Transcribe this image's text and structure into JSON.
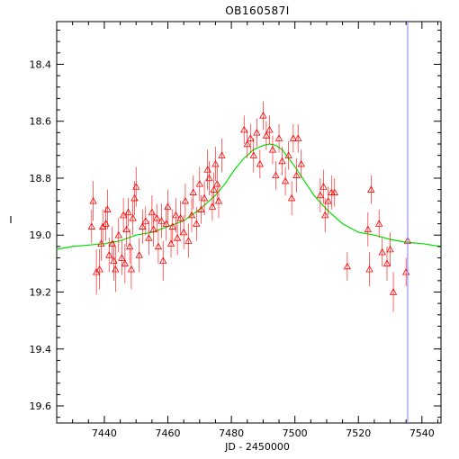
{
  "chart_data": {
    "type": "scatter",
    "title": "OB160587I",
    "xlabel": "JD - 2450000",
    "ylabel": "I",
    "xlim": [
      7425,
      7546
    ],
    "ylim": [
      19.66,
      18.25
    ],
    "y_inverted": true,
    "xticks": [
      7440,
      7460,
      7480,
      7500,
      7520,
      7540
    ],
    "yticks": [
      18.4,
      18.6,
      18.8,
      19.0,
      19.2,
      19.4,
      19.6
    ],
    "colors": {
      "points": "#ff0000",
      "model": "#00e000",
      "vline": "#8080ff",
      "axes": "#000000"
    },
    "vertical_line_x": 7535.5,
    "model_curve": {
      "x": [
        7425,
        7430,
        7435,
        7440,
        7445,
        7450,
        7455,
        7460,
        7465,
        7470,
        7475,
        7478,
        7481,
        7484,
        7487,
        7490,
        7492,
        7494,
        7496,
        7498,
        7500,
        7503,
        7506,
        7510,
        7515,
        7520,
        7525,
        7530,
        7535,
        7540,
        7546
      ],
      "y": [
        19.05,
        19.04,
        19.035,
        19.03,
        19.02,
        19.0,
        18.99,
        18.97,
        18.95,
        18.91,
        18.86,
        18.82,
        18.77,
        18.73,
        18.7,
        18.685,
        18.68,
        18.685,
        18.7,
        18.73,
        18.76,
        18.81,
        18.86,
        18.91,
        18.96,
        18.99,
        19.0,
        19.015,
        19.025,
        19.03,
        19.04
      ]
    },
    "series": [
      {
        "marker": "triangle",
        "points": [
          {
            "x": 7436.0,
            "y": 18.97,
            "err": 0.06
          },
          {
            "x": 7436.5,
            "y": 18.88,
            "err": 0.07
          },
          {
            "x": 7437.5,
            "y": 19.13,
            "err": 0.08
          },
          {
            "x": 7438.5,
            "y": 19.12,
            "err": 0.07
          },
          {
            "x": 7439.0,
            "y": 19.03,
            "err": 0.06
          },
          {
            "x": 7439.5,
            "y": 18.97,
            "err": 0.06
          },
          {
            "x": 7440.5,
            "y": 18.96,
            "err": 0.06
          },
          {
            "x": 7441.0,
            "y": 18.91,
            "err": 0.07
          },
          {
            "x": 7441.5,
            "y": 19.07,
            "err": 0.06
          },
          {
            "x": 7442.5,
            "y": 19.03,
            "err": 0.06
          },
          {
            "x": 7443.0,
            "y": 19.09,
            "err": 0.07
          },
          {
            "x": 7443.5,
            "y": 19.12,
            "err": 0.08
          },
          {
            "x": 7444.5,
            "y": 19.0,
            "err": 0.06
          },
          {
            "x": 7445.5,
            "y": 19.08,
            "err": 0.06
          },
          {
            "x": 7446.0,
            "y": 18.93,
            "err": 0.06
          },
          {
            "x": 7446.5,
            "y": 19.1,
            "err": 0.07
          },
          {
            "x": 7447.0,
            "y": 18.98,
            "err": 0.06
          },
          {
            "x": 7447.5,
            "y": 18.92,
            "err": 0.05
          },
          {
            "x": 7448.0,
            "y": 19.04,
            "err": 0.06
          },
          {
            "x": 7448.5,
            "y": 19.12,
            "err": 0.07
          },
          {
            "x": 7449.0,
            "y": 18.94,
            "err": 0.06
          },
          {
            "x": 7449.5,
            "y": 18.87,
            "err": 0.06
          },
          {
            "x": 7450.0,
            "y": 18.83,
            "err": 0.07
          },
          {
            "x": 7451.0,
            "y": 19.07,
            "err": 0.06
          },
          {
            "x": 7452.0,
            "y": 18.97,
            "err": 0.06
          },
          {
            "x": 7453.0,
            "y": 18.95,
            "err": 0.05
          },
          {
            "x": 7454.0,
            "y": 19.01,
            "err": 0.06
          },
          {
            "x": 7455.0,
            "y": 18.92,
            "err": 0.06
          },
          {
            "x": 7455.5,
            "y": 18.98,
            "err": 0.06
          },
          {
            "x": 7456.5,
            "y": 18.94,
            "err": 0.05
          },
          {
            "x": 7457.0,
            "y": 19.04,
            "err": 0.06
          },
          {
            "x": 7458.0,
            "y": 18.95,
            "err": 0.06
          },
          {
            "x": 7458.5,
            "y": 19.09,
            "err": 0.07
          },
          {
            "x": 7459.5,
            "y": 18.96,
            "err": 0.06
          },
          {
            "x": 7460.0,
            "y": 18.9,
            "err": 0.06
          },
          {
            "x": 7461.0,
            "y": 19.03,
            "err": 0.05
          },
          {
            "x": 7461.5,
            "y": 18.97,
            "err": 0.06
          },
          {
            "x": 7462.5,
            "y": 18.93,
            "err": 0.06
          },
          {
            "x": 7463.0,
            "y": 19.01,
            "err": 0.06
          },
          {
            "x": 7464.0,
            "y": 18.94,
            "err": 0.06
          },
          {
            "x": 7465.0,
            "y": 18.99,
            "err": 0.06
          },
          {
            "x": 7465.5,
            "y": 18.88,
            "err": 0.06
          },
          {
            "x": 7466.5,
            "y": 19.02,
            "err": 0.06
          },
          {
            "x": 7467.5,
            "y": 18.93,
            "err": 0.06
          },
          {
            "x": 7468.0,
            "y": 18.85,
            "err": 0.06
          },
          {
            "x": 7469.0,
            "y": 18.96,
            "err": 0.06
          },
          {
            "x": 7470.0,
            "y": 18.82,
            "err": 0.06
          },
          {
            "x": 7470.5,
            "y": 18.91,
            "err": 0.05
          },
          {
            "x": 7471.5,
            "y": 18.87,
            "err": 0.06
          },
          {
            "x": 7472.5,
            "y": 18.77,
            "err": 0.07
          },
          {
            "x": 7473.0,
            "y": 18.8,
            "err": 0.06
          },
          {
            "x": 7474.0,
            "y": 18.9,
            "err": 0.05
          },
          {
            "x": 7474.5,
            "y": 18.84,
            "err": 0.06
          },
          {
            "x": 7475.0,
            "y": 18.75,
            "err": 0.06
          },
          {
            "x": 7475.5,
            "y": 18.82,
            "err": 0.06
          },
          {
            "x": 7476.0,
            "y": 18.88,
            "err": 0.06
          },
          {
            "x": 7477.0,
            "y": 18.72,
            "err": 0.06
          },
          {
            "x": 7484.0,
            "y": 18.63,
            "err": 0.05
          },
          {
            "x": 7485.0,
            "y": 18.68,
            "err": 0.05
          },
          {
            "x": 7486.0,
            "y": 18.66,
            "err": 0.05
          },
          {
            "x": 7487.0,
            "y": 18.72,
            "err": 0.06
          },
          {
            "x": 7488.0,
            "y": 18.64,
            "err": 0.05
          },
          {
            "x": 7489.0,
            "y": 18.75,
            "err": 0.05
          },
          {
            "x": 7490.0,
            "y": 18.58,
            "err": 0.05
          },
          {
            "x": 7491.0,
            "y": 18.65,
            "err": 0.05
          },
          {
            "x": 7492.0,
            "y": 18.63,
            "err": 0.05
          },
          {
            "x": 7493.0,
            "y": 18.7,
            "err": 0.05
          },
          {
            "x": 7494.0,
            "y": 18.79,
            "err": 0.05
          },
          {
            "x": 7495.0,
            "y": 18.66,
            "err": 0.05
          },
          {
            "x": 7496.0,
            "y": 18.74,
            "err": 0.05
          },
          {
            "x": 7497.0,
            "y": 18.81,
            "err": 0.05
          },
          {
            "x": 7498.0,
            "y": 18.72,
            "err": 0.05
          },
          {
            "x": 7499.0,
            "y": 18.87,
            "err": 0.06
          },
          {
            "x": 7499.5,
            "y": 18.66,
            "err": 0.05
          },
          {
            "x": 7500.5,
            "y": 18.79,
            "err": 0.06
          },
          {
            "x": 7501.0,
            "y": 18.66,
            "err": 0.05
          },
          {
            "x": 7502.0,
            "y": 18.75,
            "err": 0.05
          },
          {
            "x": 7508.0,
            "y": 18.86,
            "err": 0.06
          },
          {
            "x": 7509.0,
            "y": 18.83,
            "err": 0.06
          },
          {
            "x": 7509.5,
            "y": 18.93,
            "err": 0.06
          },
          {
            "x": 7510.5,
            "y": 18.88,
            "err": 0.05
          },
          {
            "x": 7511.5,
            "y": 18.85,
            "err": 0.06
          },
          {
            "x": 7512.5,
            "y": 18.85,
            "err": 0.05
          },
          {
            "x": 7516.5,
            "y": 19.11,
            "err": 0.05
          },
          {
            "x": 7523.0,
            "y": 18.98,
            "err": 0.06
          },
          {
            "x": 7523.5,
            "y": 19.12,
            "err": 0.06
          },
          {
            "x": 7524.0,
            "y": 18.84,
            "err": 0.05
          },
          {
            "x": 7526.5,
            "y": 18.96,
            "err": 0.05
          },
          {
            "x": 7527.5,
            "y": 19.06,
            "err": 0.05
          },
          {
            "x": 7529.0,
            "y": 19.1,
            "err": 0.06
          },
          {
            "x": 7530.0,
            "y": 19.05,
            "err": 0.06
          },
          {
            "x": 7531.0,
            "y": 19.2,
            "err": 0.07
          },
          {
            "x": 7535.0,
            "y": 19.13,
            "err": 0.05
          },
          {
            "x": 7535.5,
            "y": 19.02,
            "err": 0.05
          }
        ]
      }
    ]
  }
}
